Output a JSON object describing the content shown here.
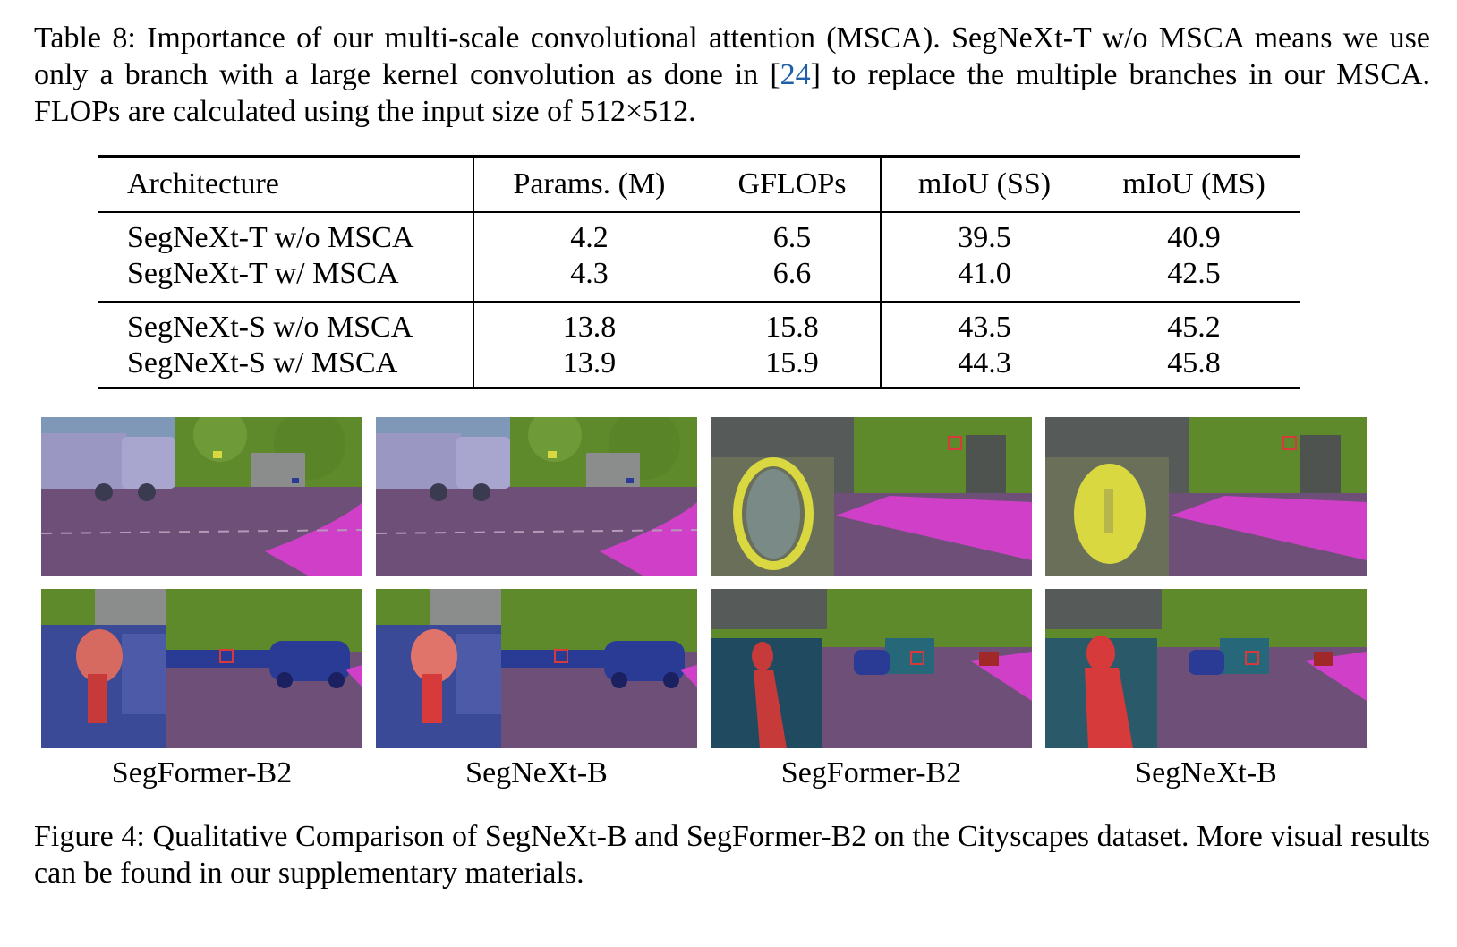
{
  "table_caption": {
    "label": "Table 8:",
    "text_before_ref": "Importance of our multi-scale convolutional attention (MSCA). SegNeXt-T w/o MSCA means we use only a branch with a large kernel convolution as done in [",
    "ref": "24",
    "text_after_ref": "] to replace the multiple branches in our MSCA. FLOPs are calculated using the input size of 512×512."
  },
  "table": {
    "headers": [
      "Architecture",
      "Params. (M)",
      "GFLOPs",
      "mIoU (SS)",
      "mIoU (MS)"
    ],
    "rows": [
      [
        "SegNeXt-T w/o MSCA",
        "4.2",
        "6.5",
        "39.5",
        "40.9"
      ],
      [
        "SegNeXt-T w/ MSCA",
        "4.3",
        "6.6",
        "41.0",
        "42.5"
      ],
      [
        "SegNeXt-S w/o MSCA",
        "13.8",
        "15.8",
        "43.5",
        "45.2"
      ],
      [
        "SegNeXt-S w/ MSCA",
        "13.9",
        "15.9",
        "44.3",
        "45.8"
      ]
    ]
  },
  "figure": {
    "column_labels": [
      "SegFormer-B2",
      "SegNeXt-B",
      "SegFormer-B2",
      "SegNeXt-B"
    ]
  },
  "figure_caption": {
    "label": "Figure 4:",
    "text": "Qualitative Comparison of SegNeXt-B and SegFormer-B2 on the Cityscapes dataset. More visual results can be found in our supplementary materials."
  },
  "colors": {
    "road": "#6e4f78",
    "sidewalk": "#d03fc8",
    "vegetation": "#5f8a2c",
    "truck": "#9a98c2",
    "car": "#2a3b96",
    "person": "#d63a3a",
    "traffic_sign": "#d9d840",
    "building": "#565a58",
    "sky": "#8ea6c4",
    "link": "#1f5fa8"
  }
}
